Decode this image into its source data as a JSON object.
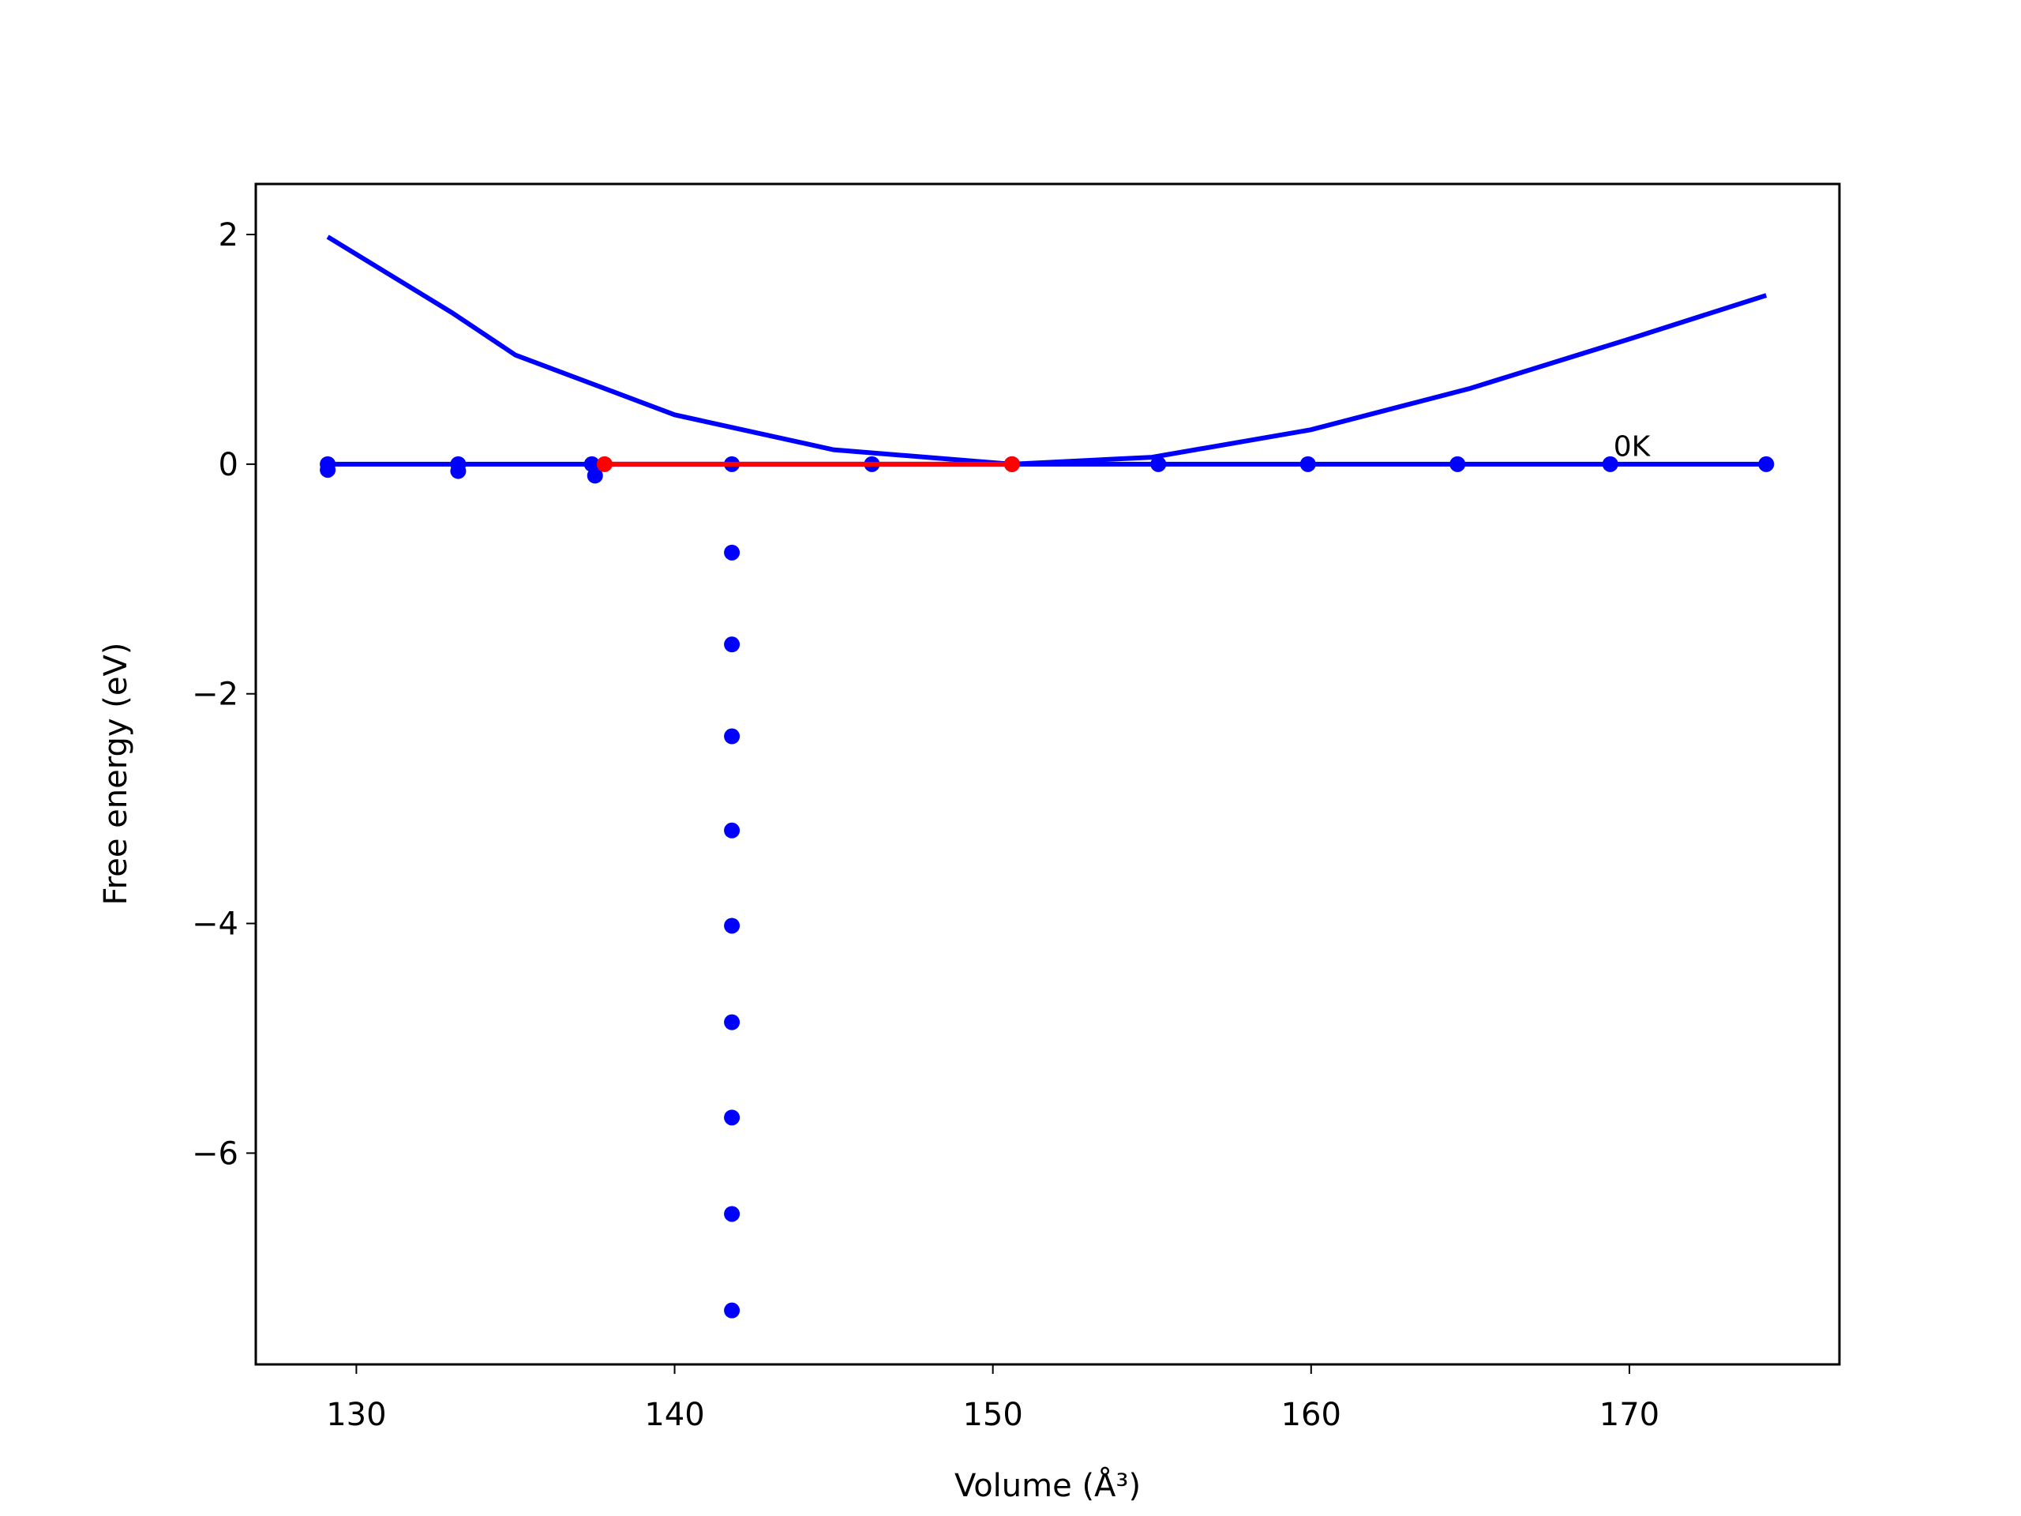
{
  "chart_data": {
    "type": "line",
    "x_label": "Volume (Å³)",
    "y_label": "Free energy (eV)",
    "xlim": [
      126.84,
      176.6
    ],
    "ylim": [
      -7.84,
      2.44
    ],
    "xticks": [
      130,
      140,
      150,
      160,
      170
    ],
    "yticks": [
      {
        "value": -6,
        "label": "−6"
      },
      {
        "value": -4,
        "label": "−4"
      },
      {
        "value": -2,
        "label": "−2"
      },
      0,
      2
    ],
    "series": [
      {
        "color": "#0000ff",
        "mode": "line",
        "x": [
          129.1,
          133,
          135,
          140,
          145,
          150.6,
          155,
          160,
          165,
          170,
          174.3
        ],
        "values": [
          1.98,
          1.32,
          0.95,
          0.43,
          0.125,
          0,
          0.06,
          0.3,
          0.66,
          1.09,
          1.47
        ]
      },
      {
        "color": "#0000ff",
        "mode": "line+points",
        "x": [
          129.1,
          133.2,
          137.4,
          141.8,
          146.2,
          150.6,
          155.2,
          159.9,
          164.6,
          169.4,
          174.3
        ],
        "values": [
          0,
          0,
          0,
          0,
          0,
          0,
          0,
          0,
          0,
          0,
          0
        ]
      },
      {
        "color": "#0000ff",
        "mode": "points",
        "x": [
          129.1,
          133.2,
          137.5,
          141.8,
          141.8,
          141.8,
          141.8,
          141.8,
          141.8,
          141.8,
          141.8,
          141.8
        ],
        "values": [
          -0.05,
          -0.06,
          -0.1,
          -0.77,
          -1.57,
          -2.37,
          -3.19,
          -4.02,
          -4.86,
          -5.69,
          -6.53,
          -7.37
        ]
      },
      {
        "color": "#ff0000",
        "mode": "line+points",
        "x": [
          137.8,
          150.6
        ],
        "values": [
          0,
          0
        ]
      }
    ],
    "annotations": [
      {
        "text": "0K",
        "x": 169.5,
        "y": 0.07
      }
    ]
  }
}
